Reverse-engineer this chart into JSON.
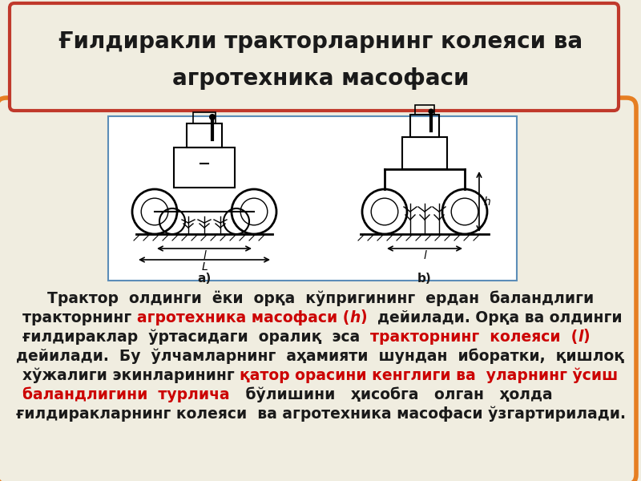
{
  "title_line1": "Ғилдиракли тракторларнинг колеяси ва",
  "title_line2": "агротехника масофаси",
  "bg_color": "#f0ede0",
  "title_box_bg": "#f0ede0",
  "title_box_border": "#c0392b",
  "outer_box_border": "#e67e22",
  "inner_box_border": "#5b8db8",
  "text_color": "#1a1a1a",
  "red_color": "#cc0000",
  "label_a": "a)",
  "label_b": "b)",
  "title_fontsize": 20,
  "body_fontsize": 13.5
}
